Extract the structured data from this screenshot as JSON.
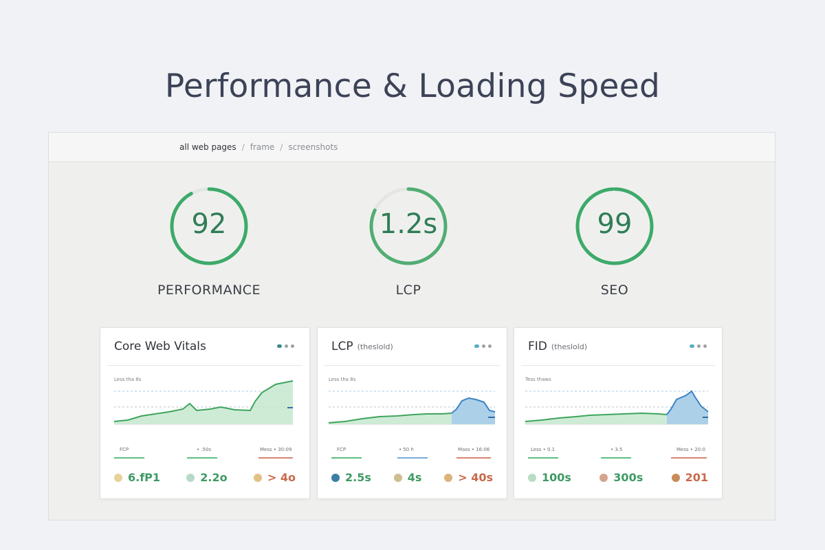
{
  "page": {
    "headline": "Performance & Loading Speed"
  },
  "breadcrumb": {
    "items": [
      "all web pages",
      "frame",
      "screenshots"
    ],
    "separator": "/"
  },
  "gauges": [
    {
      "value": "92",
      "label": "PERFORMANCE",
      "fraction": 0.92,
      "color": "#3daa6a"
    },
    {
      "value": "1.2s",
      "label": "LCP",
      "fraction": 0.82,
      "color": "#52ad73"
    },
    {
      "value": "99",
      "label": "SEO",
      "fraction": 0.99,
      "color": "#3daa6a"
    }
  ],
  "cards": [
    {
      "title": "Core Web Vitals",
      "subtitle": "",
      "axis_note": "Less tha 8s",
      "legend": [
        "FCP",
        "• .50s",
        "Mess • 30:09"
      ],
      "line_color": "#3ea45d",
      "stats": [
        {
          "value": "6.fP1",
          "color": "#3e9a63",
          "dot": "#e8d29a"
        },
        {
          "value": "2.2o",
          "color": "#3e9a63",
          "dot": "#b9d9c8"
        },
        {
          "value": "> 4o",
          "color": "#c8694a",
          "dot": "#e3c185"
        }
      ]
    },
    {
      "title": "LCP",
      "subtitle": "(theslold)",
      "axis_note": "Less tha 8s",
      "legend": [
        "FCP",
        "• 50 h",
        "Mass • 16:06"
      ],
      "line_color": "#3b82c4",
      "stats": [
        {
          "value": "2.5s",
          "color": "#3e9a63",
          "dot": "#3a7ea3"
        },
        {
          "value": "4s",
          "color": "#3e9a63",
          "dot": "#cdbf8f"
        },
        {
          "value": "> 40s",
          "color": "#c8694a",
          "dot": "#dcb37a"
        }
      ]
    },
    {
      "title": "FID",
      "subtitle": "(theslold)",
      "axis_note": "Tess thaws",
      "legend": [
        "Less • 0.1",
        "• 3.5",
        "Mess • 20:0"
      ],
      "line_color": "#3b82c4",
      "stats": [
        {
          "value": "100s",
          "color": "#3e9a63",
          "dot": "#b9dcc4"
        },
        {
          "value": "300s",
          "color": "#3e9a63",
          "dot": "#d4a58e"
        },
        {
          "value": "201",
          "color": "#c8694a",
          "dot": "#c98a58"
        }
      ]
    }
  ]
}
